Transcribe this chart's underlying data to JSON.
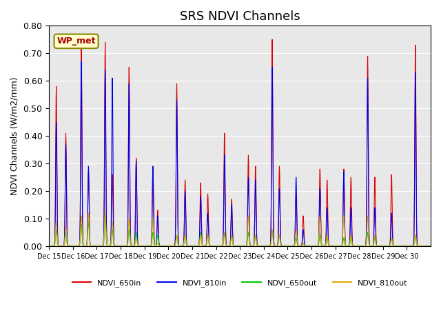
{
  "title": "SRS NDVI Channels",
  "ylabel": "NDVI Channels (W/m2/mm)",
  "annotation": "WP_met",
  "ylim": [
    0.0,
    0.8
  ],
  "yticks": [
    0.0,
    0.1,
    0.2,
    0.3,
    0.4,
    0.5,
    0.6,
    0.7,
    0.8
  ],
  "xtick_labels": [
    "Dec 15",
    "Dec 16",
    "Dec 17",
    "Dec 18",
    "Dec 19",
    "Dec 20",
    "Dec 21",
    "Dec 22",
    "Dec 23",
    "Dec 24",
    "Dec 25",
    "Dec 26",
    "Dec 27",
    "Dec 28",
    "Dec 29",
    "Dec 30"
  ],
  "colors": {
    "NDVI_650in": "#dd0000",
    "NDVI_810in": "#0000ee",
    "NDVI_650out": "#00cc00",
    "NDVI_810out": "#ddaa00"
  },
  "background_color": "#e8e8e8",
  "legend_labels": [
    "NDVI_650in",
    "NDVI_810in",
    "NDVI_650out",
    "NDVI_810out"
  ],
  "annotation_box_color": "#ffffcc",
  "annotation_text_color": "#aa0000",
  "title_fontsize": 13,
  "label_fontsize": 9
}
